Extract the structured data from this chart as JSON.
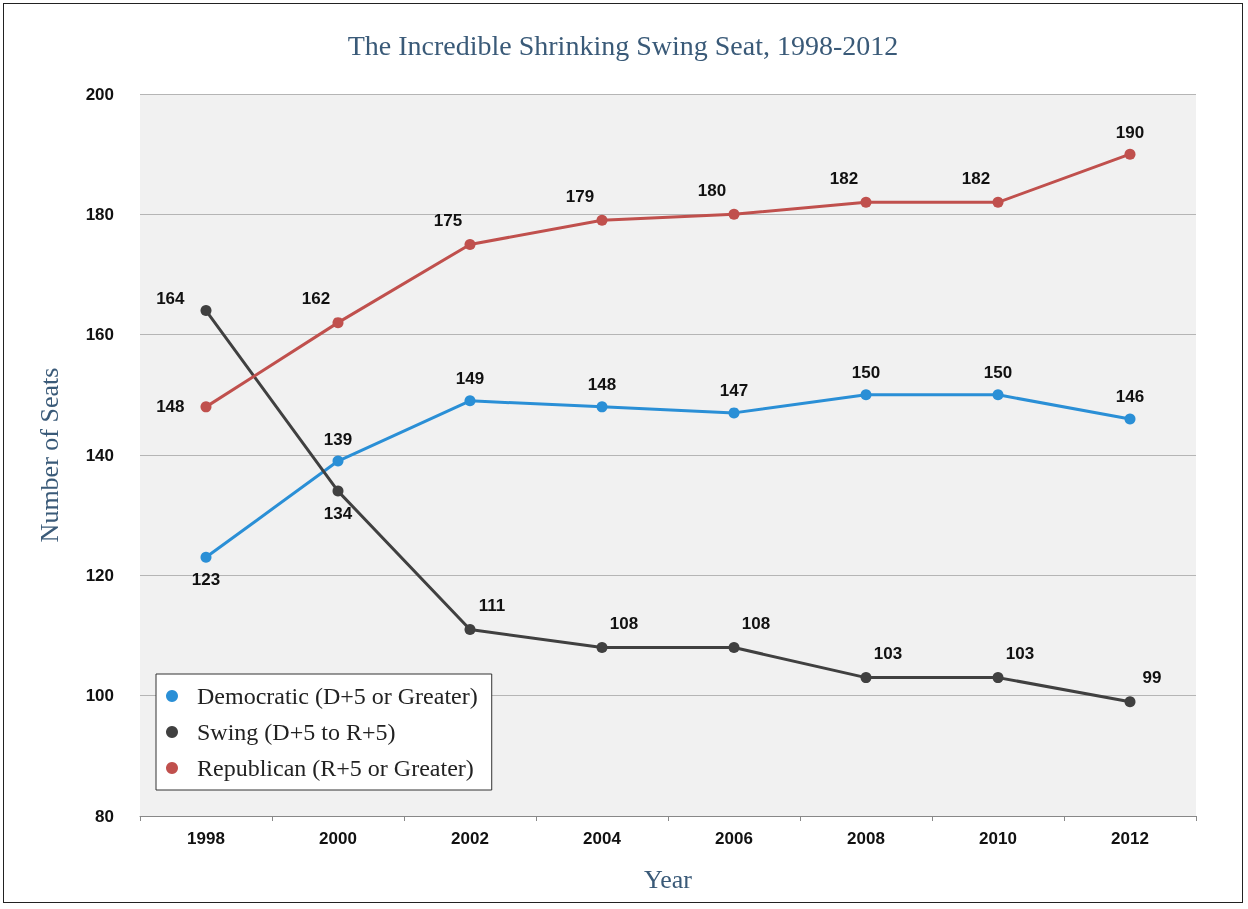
{
  "chart_data": {
    "type": "line",
    "title": "The Incredible Shrinking Swing Seat, 1998-2012",
    "xlabel": "Year",
    "ylabel": "Number of Seats",
    "categories": [
      "1998",
      "2000",
      "2002",
      "2004",
      "2006",
      "2008",
      "2010",
      "2012"
    ],
    "series": [
      {
        "name": "Democratic (D+5 or Greater)",
        "color": "#2a8fd6",
        "values": [
          123,
          139,
          149,
          148,
          147,
          150,
          150,
          146
        ]
      },
      {
        "name": "Swing (D+5 to R+5)",
        "color": "#404040",
        "values": [
          164,
          134,
          111,
          108,
          108,
          103,
          103,
          99
        ]
      },
      {
        "name": "Republican (R+5 or Greater)",
        "color": "#c0504d",
        "values": [
          148,
          162,
          175,
          179,
          180,
          182,
          182,
          190
        ]
      }
    ],
    "ylim": [
      80,
      200
    ],
    "yticks": [
      80,
      100,
      120,
      140,
      160,
      180,
      200
    ],
    "grid": "y",
    "legend": "bottom left",
    "marker": "circle",
    "line_style": "solid",
    "data_labels": true
  }
}
